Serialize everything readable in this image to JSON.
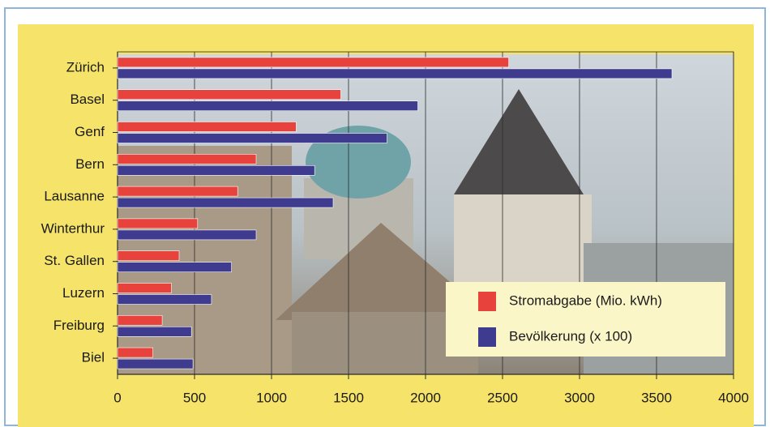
{
  "chart_data": {
    "type": "bar",
    "orientation": "horizontal",
    "categories": [
      "Zürich",
      "Basel",
      "Genf",
      "Bern",
      "Lausanne",
      "Winterthur",
      "St. Gallen",
      "Luzern",
      "Freiburg",
      "Biel"
    ],
    "series": [
      {
        "name": "Stromabgabe (Mio. kWh)",
        "color": "#e8423d",
        "values": [
          2540,
          1450,
          1160,
          900,
          780,
          520,
          400,
          350,
          290,
          230
        ]
      },
      {
        "name": "Bevölkerung (x 100)",
        "color": "#3f3c90",
        "values": [
          3600,
          1950,
          1750,
          1280,
          1400,
          900,
          740,
          610,
          480,
          490
        ]
      }
    ],
    "xlim": [
      0,
      4000
    ],
    "xticks": [
      0,
      500,
      1000,
      1500,
      2000,
      2500,
      3000,
      3500,
      4000
    ],
    "grid": true,
    "legend": "bottom-right"
  }
}
